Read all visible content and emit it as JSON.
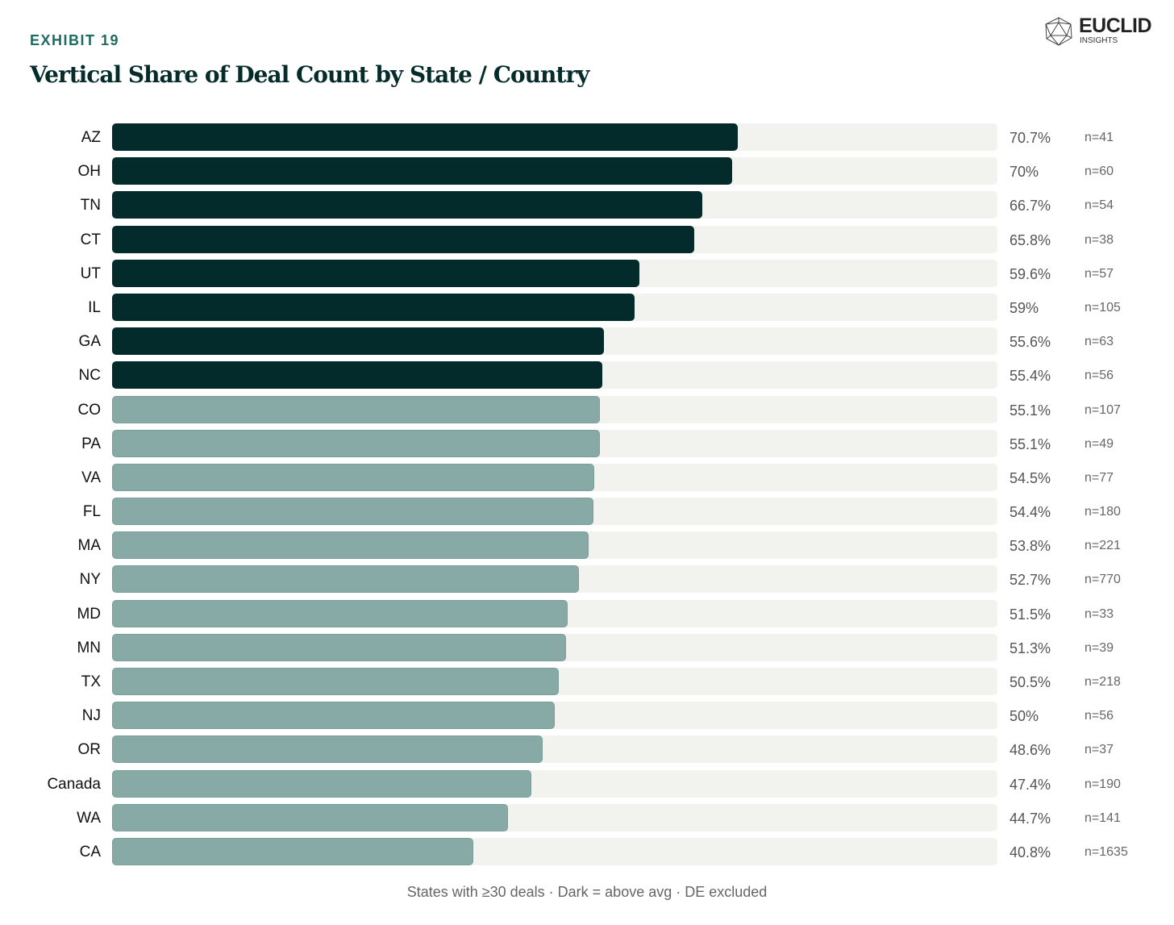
{
  "header": {
    "exhibit": "EXHIBIT 19",
    "logo_word": "EUCLID",
    "logo_sub": "INSIGHTS"
  },
  "chart_data": {
    "type": "bar",
    "orientation": "horizontal",
    "title": "Vertical Share of Deal Count by State / Country",
    "xlim": [
      0,
      100
    ],
    "unit": "%",
    "categories": [
      "AZ",
      "OH",
      "TN",
      "CT",
      "UT",
      "IL",
      "GA",
      "NC",
      "CO",
      "PA",
      "VA",
      "FL",
      "MA",
      "NY",
      "MD",
      "MN",
      "TX",
      "NJ",
      "OR",
      "Canada",
      "WA",
      "CA"
    ],
    "values": [
      70.7,
      70,
      66.7,
      65.8,
      59.6,
      59,
      55.6,
      55.4,
      55.1,
      55.1,
      54.5,
      54.4,
      53.8,
      52.7,
      51.5,
      51.3,
      50.5,
      50,
      48.6,
      47.4,
      44.7,
      40.8
    ],
    "value_labels": [
      "70.7%",
      "70%",
      "66.7%",
      "65.8%",
      "59.6%",
      "59%",
      "55.6%",
      "55.4%",
      "55.1%",
      "55.1%",
      "54.5%",
      "54.4%",
      "53.8%",
      "52.7%",
      "51.5%",
      "51.3%",
      "50.5%",
      "50%",
      "48.6%",
      "47.4%",
      "44.7%",
      "40.8%"
    ],
    "n_labels": [
      "n=41",
      "n=60",
      "n=54",
      "n=38",
      "n=57",
      "n=105",
      "n=63",
      "n=56",
      "n=107",
      "n=49",
      "n=77",
      "n=180",
      "n=221",
      "n=770",
      "n=33",
      "n=39",
      "n=218",
      "n=56",
      "n=37",
      "n=190",
      "n=141",
      "n=1635"
    ],
    "above_avg": [
      true,
      true,
      true,
      true,
      true,
      true,
      true,
      true,
      false,
      false,
      false,
      false,
      false,
      false,
      false,
      false,
      false,
      false,
      false,
      false,
      false,
      false
    ],
    "colors": {
      "above": "#032B2B",
      "below": "#88AAA6",
      "track": "#F2F2EE"
    },
    "footnote": "States with ≥30 deals · Dark = above avg · DE excluded"
  }
}
